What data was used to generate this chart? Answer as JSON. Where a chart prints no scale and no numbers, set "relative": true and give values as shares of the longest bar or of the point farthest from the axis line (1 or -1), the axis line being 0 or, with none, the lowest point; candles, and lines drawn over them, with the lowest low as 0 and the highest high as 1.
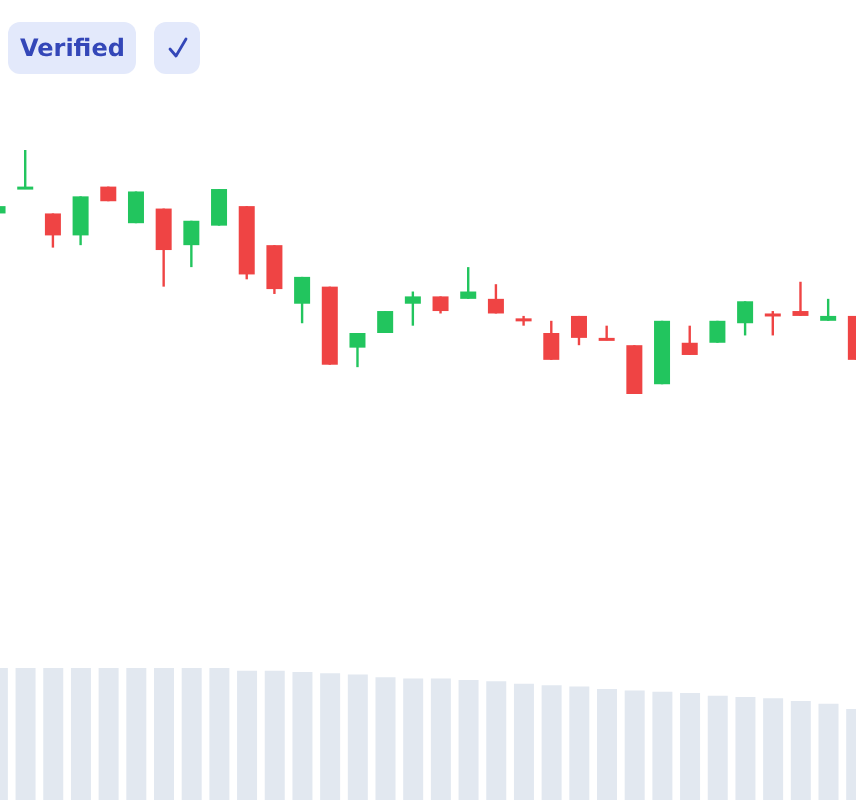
{
  "chart_data": [
    {
      "type": "candlestick",
      "relative": true,
      "annotations": [
        "Verified"
      ],
      "categories": [
        null,
        null,
        null,
        null,
        null,
        null,
        null,
        null,
        null,
        null,
        null,
        null,
        null,
        null,
        null,
        null,
        null,
        null,
        null,
        null,
        null,
        null,
        null,
        null,
        null,
        null,
        null,
        null,
        null,
        null,
        null,
        null
      ],
      "ohlc": [
        [
          0.74,
          0.77,
          0.74,
          0.77
        ],
        [
          0.84,
          1,
          0.84,
          0.85
        ],
        [
          0.74,
          0.74,
          0.6,
          0.65
        ],
        [
          0.65,
          0.81,
          0.61,
          0.81
        ],
        [
          0.85,
          0.85,
          0.79,
          0.79
        ],
        [
          0.7,
          0.83,
          0.7,
          0.83
        ],
        [
          0.76,
          0.76,
          0.44,
          0.59
        ],
        [
          0.61,
          0.71,
          0.52,
          0.71
        ],
        [
          0.69,
          0.84,
          0.69,
          0.84
        ],
        [
          0.77,
          0.77,
          0.47,
          0.49
        ],
        [
          0.61,
          0.61,
          0.41,
          0.43
        ],
        [
          0.37,
          0.48,
          0.29,
          0.48
        ],
        [
          0.44,
          0.44,
          0.12,
          0.12
        ],
        [
          0.19,
          0.25,
          0.11,
          0.25
        ],
        [
          0.25,
          0.34,
          0.25,
          0.34
        ],
        [
          0.37,
          0.42,
          0.28,
          0.4
        ],
        [
          0.4,
          0.4,
          0.33,
          0.34
        ],
        [
          0.39,
          0.52,
          0.39,
          0.42
        ],
        [
          0.39,
          0.45,
          0.33,
          0.33
        ],
        [
          0.31,
          0.32,
          0.28,
          0.3
        ],
        [
          0.25,
          0.3,
          0.14,
          0.14
        ],
        [
          0.32,
          0.32,
          0.2,
          0.23
        ],
        [
          0.23,
          0.28,
          0.22,
          0.22
        ],
        [
          0.2,
          0.2,
          0,
          0
        ],
        [
          0.04,
          0.3,
          0.04,
          0.3
        ],
        [
          0.21,
          0.28,
          0.16,
          0.16
        ],
        [
          0.21,
          0.3,
          0.21,
          0.3
        ],
        [
          0.29,
          0.38,
          0.24,
          0.38
        ],
        [
          0.33,
          0.34,
          0.24,
          0.32
        ],
        [
          0.34,
          0.46,
          0.32,
          0.32
        ],
        [
          0.3,
          0.39,
          0.3,
          0.32
        ],
        [
          0.32,
          0.32,
          0.14,
          0.14
        ]
      ],
      "colors": [
        "#22c55e",
        "#22c55e",
        "#ef4444",
        "#22c55e",
        "#ef4444",
        "#22c55e",
        "#ef4444",
        "#22c55e",
        "#22c55e",
        "#ef4444",
        "#ef4444",
        "#22c55e",
        "#ef4444",
        "#22c55e",
        "#22c55e",
        "#22c55e",
        "#ef4444",
        "#22c55e",
        "#ef4444",
        "#ef4444",
        "#ef4444",
        "#ef4444",
        "#ef4444",
        "#ef4444",
        "#22c55e",
        "#ef4444",
        "#22c55e",
        "#22c55e",
        "#ef4444",
        "#ef4444",
        "#22c55e",
        "#ef4444"
      ]
    },
    {
      "type": "bar",
      "relative": true,
      "color": "#e2e8f0",
      "categories": [
        null,
        null,
        null,
        null,
        null,
        null,
        null,
        null,
        null,
        null,
        null,
        null,
        null,
        null,
        null,
        null,
        null,
        null,
        null,
        null,
        null,
        null,
        null,
        null,
        null,
        null,
        null,
        null,
        null,
        null,
        null,
        null
      ],
      "values": [
        1,
        1,
        1,
        1,
        1,
        1,
        1,
        1,
        1,
        0.98,
        0.98,
        0.97,
        0.96,
        0.95,
        0.93,
        0.92,
        0.92,
        0.91,
        0.9,
        0.88,
        0.87,
        0.86,
        0.84,
        0.83,
        0.82,
        0.81,
        0.79,
        0.78,
        0.77,
        0.75,
        0.73,
        0.69
      ]
    }
  ]
}
